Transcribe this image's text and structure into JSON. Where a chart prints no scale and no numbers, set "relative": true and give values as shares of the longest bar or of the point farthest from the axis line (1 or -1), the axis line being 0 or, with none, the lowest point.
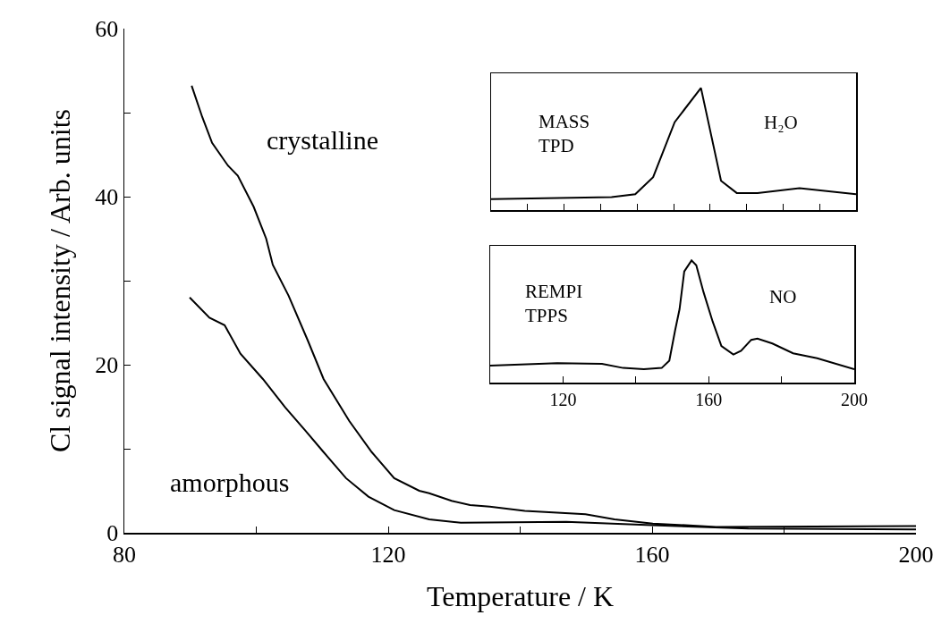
{
  "chart_data": [
    {
      "type": "line",
      "xlabel": "Temperature / K",
      "ylabel": "Cl signal intensity / Arb. units",
      "xlim": [
        80,
        200
      ],
      "ylim": [
        0,
        60
      ],
      "xticks": [
        80,
        {
          "value": 100,
          "label": null
        },
        120,
        {
          "value": 140,
          "label": null
        },
        160,
        {
          "value": 180,
          "label": null
        },
        200
      ],
      "yticks": [
        0,
        {
          "value": 10,
          "label": null
        },
        20,
        {
          "value": 30,
          "label": null
        },
        40,
        {
          "value": 50,
          "label": null
        },
        60
      ],
      "grid": false,
      "annotations": [
        "crystalline",
        "amorphous"
      ],
      "series": [
        {
          "color": "#000000",
          "x": [
            90.2,
            91.8,
            93.3,
            95.7,
            97.2,
            99.6,
            101.5,
            102.5,
            104.9,
            107.8,
            110.2,
            114.1,
            117.5,
            120.9,
            124.7,
            126.2,
            129.6,
            132.4,
            135.4,
            140.7,
            149.9,
            154.3,
            160.1,
            169.7,
            200
          ],
          "values": [
            53.2,
            49.5,
            46.4,
            43.7,
            42.5,
            38.8,
            35,
            31.9,
            28.2,
            22.9,
            18.3,
            13.3,
            9.6,
            6.5,
            5.0,
            4.7,
            3.8,
            3.3,
            3.1,
            2.6,
            2.2,
            1.6,
            1.1,
            0.7,
            0.8
          ]
        },
        {
          "color": "#000000",
          "x": [
            89.9,
            92.9,
            95.2,
            97.6,
            101.0,
            104.4,
            107.4,
            110.2,
            113.6,
            117.0,
            120.9,
            126.2,
            131,
            147,
            160,
            174.6,
            200
          ],
          "values": [
            28.0,
            25.6,
            24.7,
            21.3,
            18.3,
            14.9,
            12.2,
            9.6,
            6.5,
            4.3,
            2.7,
            1.6,
            1.2,
            1.3,
            0.9,
            0.5,
            0.4
          ]
        }
      ]
    },
    {
      "type": "line",
      "relative": true,
      "xlim": [
        100,
        200
      ],
      "tick_labels": false,
      "xticks": [
        {
          "value": 110,
          "label": null
        },
        {
          "value": 120,
          "label": null
        },
        {
          "value": 130,
          "label": null
        },
        {
          "value": 140,
          "label": null
        },
        {
          "value": 150,
          "label": null
        },
        {
          "value": 160,
          "label": null
        },
        {
          "value": 170,
          "label": null
        },
        {
          "value": 180,
          "label": null
        },
        {
          "value": 190,
          "label": null
        }
      ],
      "grid": false,
      "annotations": [
        "MASS\nTPD",
        "H₂O"
      ],
      "series": [
        {
          "color": "#000000",
          "x": [
            100,
            133,
            139.5,
            144.4,
            150.3,
            157.5,
            163,
            167.3,
            173,
            184.5,
            200
          ],
          "values": [
            0.09,
            0.107,
            0.13,
            0.27,
            0.72,
            1,
            0.24,
            0.14,
            0.14,
            0.18,
            0.13
          ]
        }
      ]
    },
    {
      "type": "line",
      "relative": true,
      "xlim": [
        100,
        200
      ],
      "tick_labels": "x",
      "xticks": [
        120,
        {
          "value": 140,
          "label": null
        },
        160,
        {
          "value": 180,
          "label": null
        },
        200
      ],
      "grid": false,
      "annotations": [
        "REMPI\nTPPS",
        "NO"
      ],
      "series": [
        {
          "color": "#000000",
          "x": [
            100,
            118.4,
            130.7,
            136.5,
            142.2,
            147.1,
            149.2,
            150.8,
            152,
            153.3,
            155.3,
            156.6,
            158.6,
            161.1,
            163.5,
            166.8,
            168.9,
            171.7,
            173.4,
            177.5,
            183.2,
            189.8,
            200
          ],
          "values": [
            0.14,
            0.16,
            0.154,
            0.12,
            0.11,
            0.12,
            0.18,
            0.43,
            0.6,
            0.91,
            1.0,
            0.96,
            0.74,
            0.5,
            0.3,
            0.23,
            0.26,
            0.35,
            0.36,
            0.32,
            0.24,
            0.2,
            0.11
          ]
        }
      ]
    }
  ]
}
